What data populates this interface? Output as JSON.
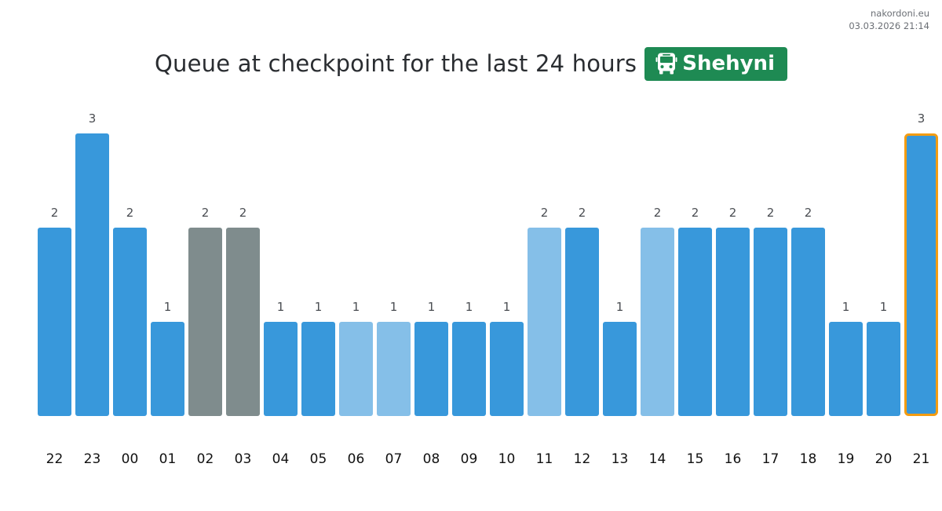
{
  "header": {
    "site": "nakordoni.eu",
    "timestamp": "03.03.2026 21:14",
    "title": "Queue at checkpoint for the last 24 hours",
    "badge_label": "Shehyni",
    "badge_icon": "bus-icon",
    "badge_color": "#1e8a53"
  },
  "colors": {
    "normal": "#3898db",
    "light": "#85bfe8",
    "gray": "#7f8c8d",
    "highlight_border": "#f39c12",
    "value_label": "#4a4d52",
    "tick_label": "#111111"
  },
  "chart_data": {
    "type": "bar",
    "categories": [
      "22",
      "23",
      "00",
      "01",
      "02",
      "03",
      "04",
      "05",
      "06",
      "07",
      "08",
      "09",
      "10",
      "11",
      "12",
      "13",
      "14",
      "15",
      "16",
      "17",
      "18",
      "19",
      "20",
      "21"
    ],
    "values": [
      2,
      3,
      2,
      1,
      2,
      2,
      1,
      1,
      1,
      1,
      1,
      1,
      1,
      2,
      2,
      1,
      2,
      2,
      2,
      2,
      2,
      1,
      1,
      3
    ],
    "bar_styles": [
      "normal",
      "normal",
      "normal",
      "normal",
      "gray",
      "gray",
      "normal",
      "normal",
      "light",
      "light",
      "normal",
      "normal",
      "normal",
      "light",
      "normal",
      "normal",
      "light",
      "normal",
      "normal",
      "normal",
      "normal",
      "normal",
      "normal",
      "highlight"
    ],
    "title": "Queue at checkpoint for the last 24 hours",
    "ylim": [
      0,
      3
    ],
    "grid": false,
    "legend": "none"
  }
}
